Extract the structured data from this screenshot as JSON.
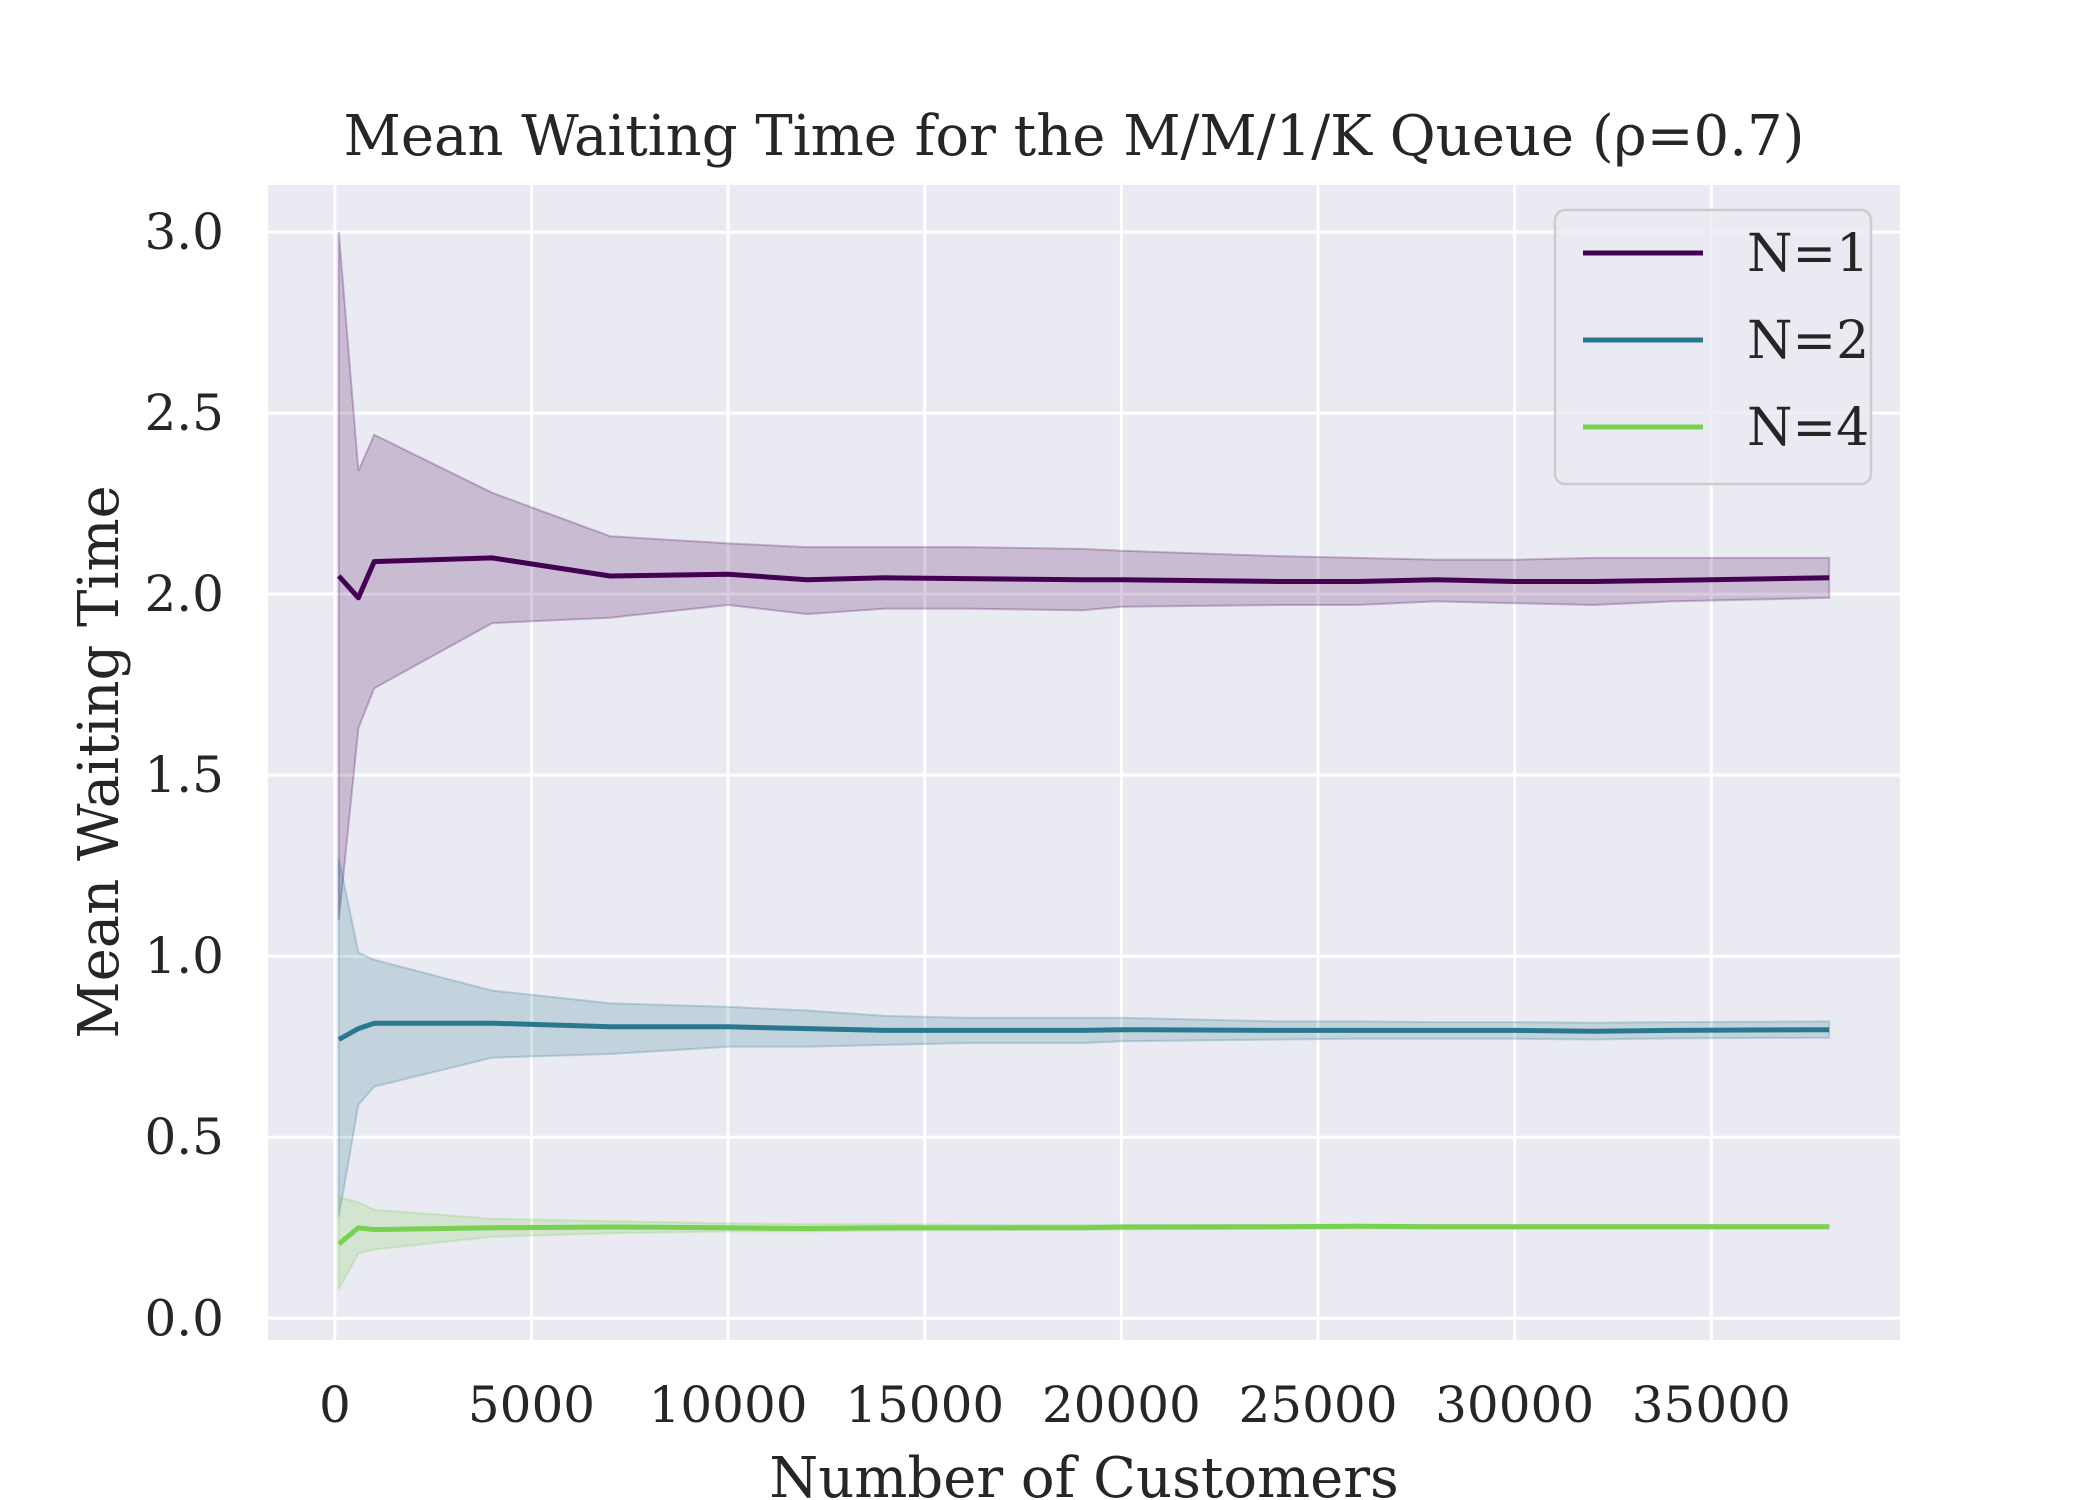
{
  "chart_data": {
    "type": "line",
    "title": "Mean Waiting Time for the M/M/1/K Queue (ρ=0.7)",
    "xlabel": "Number of Customers",
    "ylabel": "Mean Waiting Time",
    "xlim": [
      -1700,
      39800
    ],
    "ylim": [
      -0.06,
      3.13
    ],
    "xticks": [
      0,
      5000,
      10000,
      15000,
      20000,
      25000,
      30000,
      35000
    ],
    "xtick_labels": [
      "0",
      "5000",
      "10000",
      "15000",
      "20000",
      "25000",
      "30000",
      "35000"
    ],
    "yticks": [
      0.0,
      0.5,
      1.0,
      1.5,
      2.0,
      2.5,
      3.0
    ],
    "ytick_labels": [
      "0.0",
      "0.5",
      "1.0",
      "1.5",
      "2.0",
      "2.5",
      "3.0"
    ],
    "grid": true,
    "legend_position": "top-right",
    "series": [
      {
        "name": "N=1",
        "color": "#440154",
        "x": [
          100,
          600,
          1000,
          4000,
          7000,
          10000,
          12000,
          14000,
          16000,
          19000,
          20000,
          24000,
          26000,
          28000,
          30000,
          32000,
          34000,
          38000
        ],
        "mean": [
          2.05,
          1.99,
          2.09,
          2.1,
          2.05,
          2.055,
          2.04,
          2.045,
          2.043,
          2.04,
          2.04,
          2.035,
          2.035,
          2.04,
          2.035,
          2.035,
          2.038,
          2.045
        ],
        "lower": [
          1.1,
          1.63,
          1.74,
          1.92,
          1.935,
          1.97,
          1.945,
          1.96,
          1.96,
          1.955,
          1.965,
          1.97,
          1.97,
          1.98,
          1.975,
          1.97,
          1.98,
          1.99
        ],
        "upper": [
          3.0,
          2.34,
          2.44,
          2.28,
          2.16,
          2.14,
          2.13,
          2.13,
          2.13,
          2.125,
          2.12,
          2.105,
          2.1,
          2.095,
          2.095,
          2.1,
          2.1,
          2.1
        ]
      },
      {
        "name": "N=2",
        "color": "#2a788e",
        "x": [
          100,
          600,
          1000,
          4000,
          7000,
          10000,
          12000,
          14000,
          16000,
          19000,
          20000,
          24000,
          26000,
          28000,
          30000,
          32000,
          34000,
          38000
        ],
        "mean": [
          0.77,
          0.8,
          0.815,
          0.815,
          0.805,
          0.805,
          0.8,
          0.795,
          0.795,
          0.795,
          0.797,
          0.795,
          0.795,
          0.795,
          0.795,
          0.793,
          0.795,
          0.797
        ],
        "lower": [
          0.28,
          0.59,
          0.64,
          0.72,
          0.73,
          0.75,
          0.75,
          0.755,
          0.76,
          0.76,
          0.765,
          0.77,
          0.772,
          0.772,
          0.772,
          0.77,
          0.773,
          0.775
        ],
        "upper": [
          1.27,
          1.01,
          0.99,
          0.905,
          0.87,
          0.86,
          0.85,
          0.835,
          0.83,
          0.83,
          0.83,
          0.82,
          0.82,
          0.818,
          0.818,
          0.816,
          0.818,
          0.82
        ]
      },
      {
        "name": "N=4",
        "color": "#7ad151",
        "x": [
          100,
          600,
          1000,
          4000,
          7000,
          10000,
          12000,
          14000,
          16000,
          19000,
          20000,
          24000,
          26000,
          28000,
          30000,
          32000,
          34000,
          38000
        ],
        "mean": [
          0.205,
          0.25,
          0.245,
          0.25,
          0.252,
          0.25,
          0.248,
          0.25,
          0.25,
          0.25,
          0.252,
          0.253,
          0.254,
          0.253,
          0.253,
          0.253,
          0.253,
          0.253
        ],
        "lower": [
          0.08,
          0.18,
          0.19,
          0.225,
          0.235,
          0.24,
          0.24,
          0.242,
          0.243,
          0.245,
          0.245,
          0.247,
          0.248,
          0.248,
          0.248,
          0.248,
          0.248,
          0.248
        ],
        "upper": [
          0.335,
          0.32,
          0.3,
          0.275,
          0.268,
          0.262,
          0.26,
          0.26,
          0.258,
          0.258,
          0.258,
          0.258,
          0.258,
          0.258,
          0.258,
          0.258,
          0.258,
          0.258
        ]
      }
    ]
  }
}
